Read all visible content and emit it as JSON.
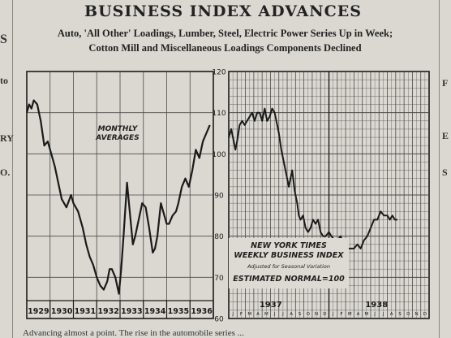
{
  "headline": "BUSINESS INDEX ADVANCES",
  "subhead_line1": "Auto, 'All Other' Loadings, Lumber, Steel, Electric Power Series Up in Week;",
  "subhead_line2": "Cotton Mill and Miscellaneous Loadings Components Declined",
  "left_margin_fragments": [
    "S",
    "to",
    "RY",
    "O."
  ],
  "right_margin_fragments": [
    "F",
    "E",
    "S"
  ],
  "body_text_fragment": "Advancing almost a point. The rise in the automobile series ...",
  "colors": {
    "ink": "#1e1e1e",
    "paper": "#dad8d1",
    "line": "#1a1a1a",
    "grid": "#4a4a4a"
  },
  "chart_data": [
    {
      "type": "line",
      "title": "",
      "annotation_lines": [
        "MONTHLY",
        "AVERAGES"
      ],
      "ylim": [
        60,
        120
      ],
      "grid": true,
      "year_labels": [
        "1929",
        "1930",
        "1931",
        "1932",
        "1933",
        "1934",
        "1935",
        "1936"
      ],
      "series": [
        {
          "x": [
            1929.0,
            1929.1,
            1929.2,
            1929.3,
            1929.45,
            1929.6,
            1929.75,
            1929.9,
            1930.05,
            1930.2,
            1930.35,
            1930.5,
            1930.7,
            1930.9,
            1931.0,
            1931.2,
            1931.4,
            1931.55,
            1931.7,
            1931.85,
            1932.0,
            1932.15,
            1932.3,
            1932.45,
            1932.55,
            1932.65,
            1932.8,
            1932.95,
            1933.05,
            1933.15,
            1933.3,
            1933.45,
            1933.55,
            1933.65,
            1933.8,
            1933.95,
            1934.1,
            1934.25,
            1934.4,
            1934.5,
            1934.6,
            1934.75,
            1934.85,
            1935.0,
            1935.1,
            1935.25,
            1935.4,
            1935.5,
            1935.65,
            1935.8,
            1935.95,
            1936.1,
            1936.25,
            1936.4,
            1936.55,
            1936.7,
            1936.85
          ],
          "values": [
            110,
            112,
            111,
            113,
            112,
            108,
            102,
            103,
            100,
            97,
            93,
            89,
            87,
            90,
            88,
            86,
            82,
            78,
            75,
            73,
            70,
            68,
            67,
            69,
            72,
            72,
            70,
            66,
            72,
            80,
            93,
            84,
            78,
            80,
            84,
            88,
            87,
            82,
            76,
            77,
            80,
            88,
            86,
            83,
            83,
            85,
            86,
            88,
            92,
            94,
            92,
            96,
            101,
            99,
            103,
            105,
            107
          ]
        }
      ]
    },
    {
      "type": "line",
      "title": "NEW YORK TIMES WEEKLY BUSINESS INDEX",
      "subtitle": "Adjusted for Seasonal Variation",
      "annotation": "ESTIMATED NORMAL=100",
      "ylim": [
        60,
        120
      ],
      "y_ticks": [
        60,
        70,
        80,
        90,
        100,
        110,
        120
      ],
      "grid": true,
      "year_labels": [
        "1937",
        "1938"
      ],
      "month_ticks": [
        "J",
        "F",
        "M",
        "A",
        "M",
        "J",
        "J",
        "A",
        "S",
        "O",
        "N",
        "D",
        "J",
        "F",
        "M",
        "A",
        "M",
        "J",
        "J",
        "A",
        "S",
        "O",
        "N",
        "D"
      ],
      "series": [
        {
          "x": [
            0,
            0.3,
            0.6,
            0.8,
            1.0,
            1.3,
            1.6,
            1.9,
            2.2,
            2.5,
            2.8,
            3.1,
            3.4,
            3.7,
            4.0,
            4.3,
            4.6,
            4.9,
            5.2,
            5.5,
            5.7,
            6.0,
            6.3,
            6.6,
            6.9,
            7.2,
            7.6,
            7.9,
            8.2,
            8.4,
            8.6,
            8.9,
            9.2,
            9.5,
            9.8,
            10.1,
            10.4,
            10.7,
            11.0,
            11.3,
            11.6,
            12.0,
            12.3,
            12.7,
            13.0,
            13.4,
            13.8,
            14.2,
            14.6,
            15.0,
            15.4,
            15.8,
            16.2,
            16.6,
            17.0,
            17.4,
            17.8,
            18.2,
            18.6,
            19.0,
            19.3,
            19.6,
            19.9,
            20.2
          ],
          "values": [
            104,
            106,
            103,
            101,
            103,
            107,
            108,
            107,
            108,
            109,
            110,
            108,
            110,
            110,
            108,
            111,
            108,
            109,
            111,
            110,
            108,
            105,
            101,
            98,
            95,
            92,
            96,
            91,
            88,
            85,
            84,
            85,
            82,
            81,
            82,
            84,
            83,
            84,
            81,
            80,
            80,
            81,
            80,
            79,
            79,
            80,
            78,
            77,
            77,
            77,
            78,
            77,
            79,
            80,
            82,
            84,
            84,
            86,
            85,
            85,
            84,
            85,
            84,
            84
          ]
        }
      ]
    }
  ]
}
